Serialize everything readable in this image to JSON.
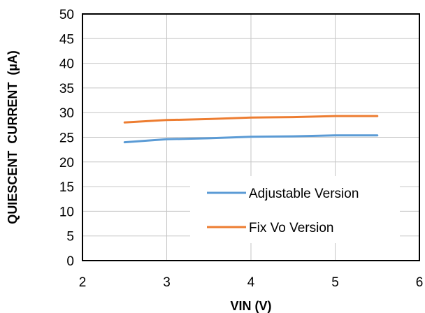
{
  "chart_data": {
    "type": "line",
    "xlabel": "VIN (V)",
    "ylabel": "QUIESCENT  CURRENT  (µA)",
    "xlim": [
      2,
      6
    ],
    "ylim": [
      0,
      50
    ],
    "xticks": [
      2,
      3,
      4,
      5,
      6
    ],
    "yticks": [
      0,
      5,
      10,
      15,
      20,
      25,
      30,
      35,
      40,
      45,
      50
    ],
    "grid": true,
    "legend_position": "bottom-right",
    "series": [
      {
        "name": "Adjustable Version",
        "color": "#5B9BD5",
        "x": [
          2.5,
          3.0,
          3.5,
          4.0,
          4.5,
          5.0,
          5.5
        ],
        "y": [
          24.0,
          24.6,
          24.8,
          25.1,
          25.2,
          25.4,
          25.4
        ]
      },
      {
        "name": "Fix Vo Version",
        "color": "#ED7D31",
        "x": [
          2.5,
          3.0,
          3.5,
          4.0,
          4.5,
          5.0,
          5.5
        ],
        "y": [
          28.0,
          28.5,
          28.7,
          29.0,
          29.1,
          29.3,
          29.3
        ]
      }
    ]
  }
}
